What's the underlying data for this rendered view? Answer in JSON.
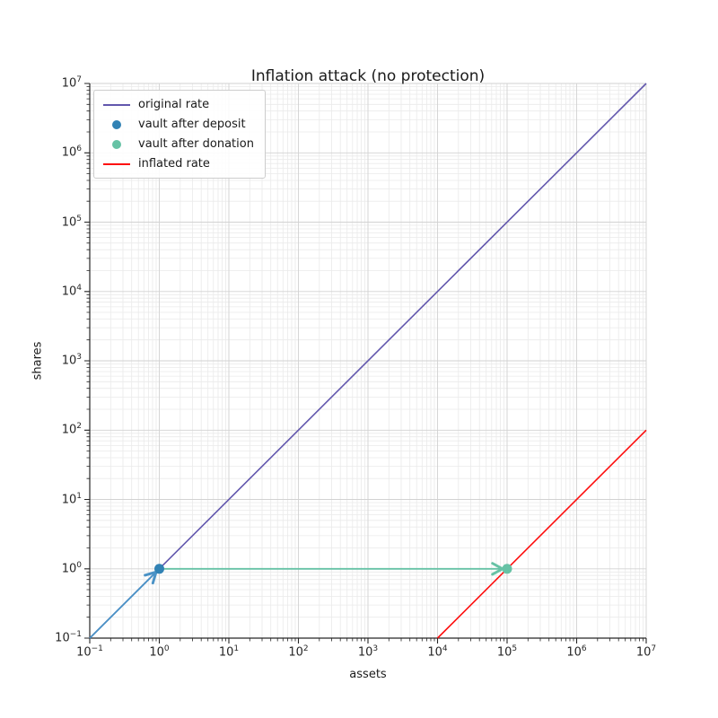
{
  "chart_data": {
    "type": "line",
    "title": "Inflation attack (no protection)",
    "xlabel": "assets",
    "ylabel": "shares",
    "xscale": "log",
    "yscale": "log",
    "xlim": [
      0.1,
      10000000
    ],
    "ylim": [
      0.1,
      10000000
    ],
    "x_tick_exponents": [
      -1,
      0,
      1,
      2,
      3,
      4,
      5,
      6,
      7
    ],
    "y_tick_exponents": [
      -1,
      0,
      1,
      2,
      3,
      4,
      5,
      6,
      7
    ],
    "grid": {
      "major": true,
      "minor": true,
      "color_major": "#d2d2d2",
      "color_minor": "#eaeaea"
    },
    "axis_color": "#262626",
    "legend_position": "upper-left",
    "series": [
      {
        "name": "original rate",
        "kind": "line",
        "color": "#6257ad",
        "points": [
          [
            0.1,
            0.1
          ],
          [
            10000000,
            10000000
          ]
        ]
      },
      {
        "name": "vault after deposit",
        "kind": "scatter",
        "color": "#3182b4",
        "points": [
          [
            1,
            1
          ]
        ]
      },
      {
        "name": "vault after donation",
        "kind": "scatter",
        "color": "#66c2a5",
        "points": [
          [
            100000,
            1
          ]
        ]
      },
      {
        "name": "inflated rate",
        "kind": "line",
        "color": "#fd0e0e",
        "points": [
          [
            10000,
            0.1
          ],
          [
            10000000,
            100
          ]
        ]
      }
    ],
    "annotations": [
      {
        "name": "deposit-arrow",
        "type": "arrow",
        "color": "#4a92c6",
        "from": [
          0.1,
          0.1
        ],
        "to": [
          1,
          1
        ]
      },
      {
        "name": "donation-arrow",
        "type": "arrow",
        "color": "#66c2a5",
        "from": [
          1,
          1
        ],
        "to": [
          100000,
          1
        ]
      }
    ]
  }
}
